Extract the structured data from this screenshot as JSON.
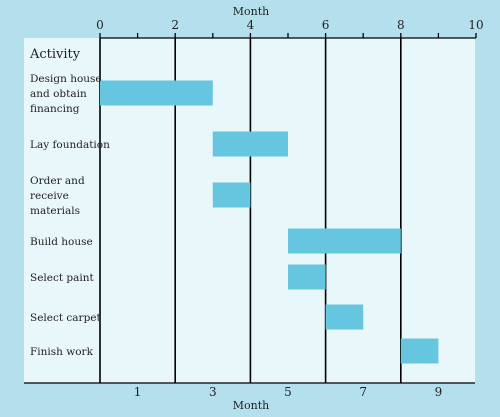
{
  "chart_data": {
    "type": "gantt",
    "axis_label": "Month",
    "x_range": [
      0,
      10
    ],
    "top_ticks": [
      0,
      2,
      4,
      6,
      8,
      10
    ],
    "bottom_ticks": [
      1,
      3,
      5,
      7,
      9
    ],
    "gridlines_at": [
      0,
      2,
      4,
      6,
      8
    ],
    "category_header": "Activity",
    "tasks": [
      {
        "label": [
          "Design house",
          "and obtain",
          "financing"
        ],
        "start": 0,
        "end": 3
      },
      {
        "label": [
          "Lay foundation"
        ],
        "start": 3,
        "end": 5
      },
      {
        "label": [
          "Order and",
          "receive",
          "materials"
        ],
        "start": 3,
        "end": 4
      },
      {
        "label": [
          "Build house"
        ],
        "start": 5,
        "end": 8
      },
      {
        "label": [
          "Select paint"
        ],
        "start": 5,
        "end": 6
      },
      {
        "label": [
          "Select carpet"
        ],
        "start": 6,
        "end": 7
      },
      {
        "label": [
          "Finish work"
        ],
        "start": 8,
        "end": 9
      }
    ],
    "colors": {
      "frame": "#b3e0ec",
      "plot_background": "#e8f7fa",
      "bar": "#66c6df",
      "line": "#000000",
      "text": "#231f20"
    }
  }
}
